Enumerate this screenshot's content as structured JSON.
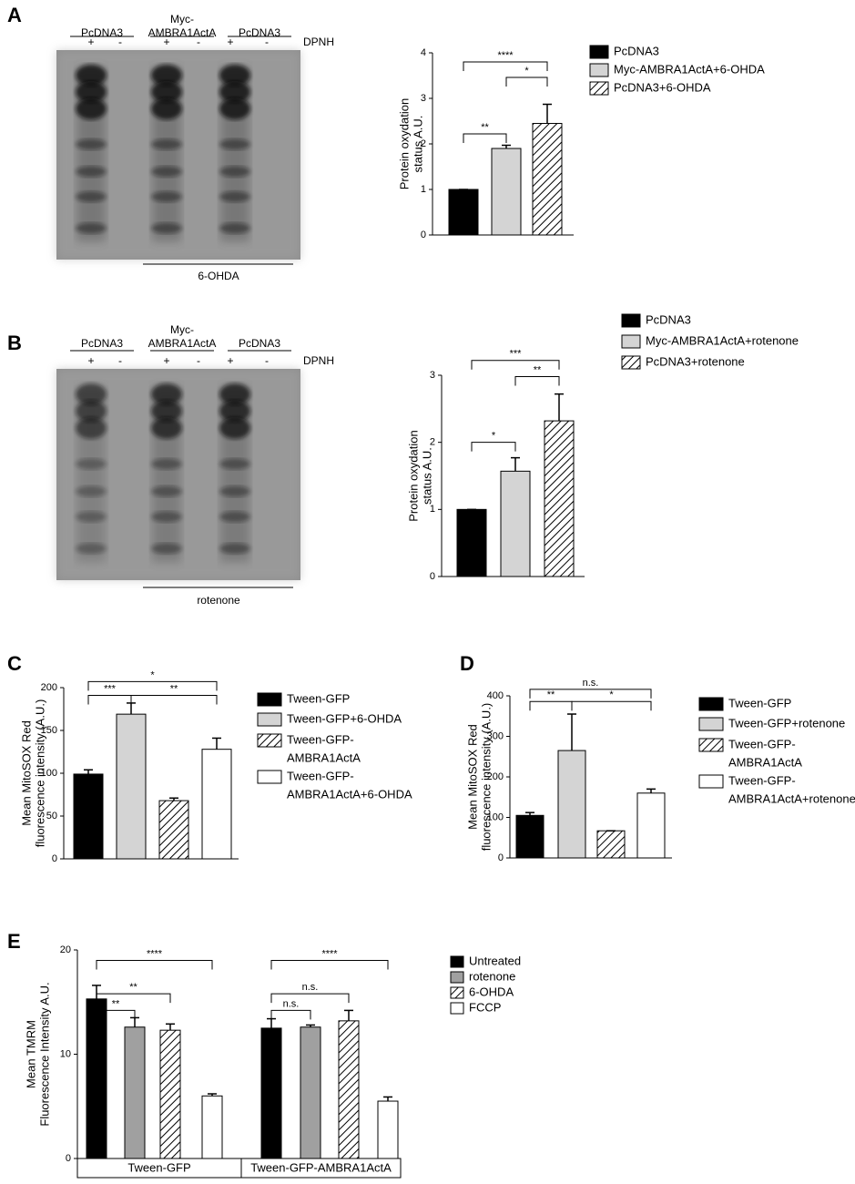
{
  "chart_data": [
    {
      "type": "bar",
      "panel": "A",
      "ylabel": [
        "Protein oxydation",
        "status A.U."
      ],
      "ylim": [
        0,
        4
      ],
      "yticks": [
        0,
        1,
        2,
        3,
        4
      ],
      "series": [
        {
          "name": "PcDNA3",
          "color": "#000000",
          "values": [
            1
          ],
          "errors": [
            0
          ]
        },
        {
          "name": "Myc-AMBRA1ActA+6-OHDA",
          "color": "#d4d4d4",
          "values": [
            1.9
          ],
          "errors": [
            0.07
          ]
        },
        {
          "name": "PcDNA3+6-OHDA",
          "color": "#ffffff",
          "hatch": true,
          "values": [
            2.45
          ],
          "errors": [
            0.42
          ]
        }
      ],
      "annotations": [
        {
          "text": "**",
          "from": 0,
          "to": 1,
          "y": 2.22
        },
        {
          "text": "*",
          "from": 1,
          "to": 2,
          "y": 3.46
        },
        {
          "text": "****",
          "from": 0,
          "to": 2,
          "y": 3.8
        }
      ]
    },
    {
      "type": "bar",
      "panel": "B",
      "ylabel": [
        "Protein oxydation",
        "status A.U."
      ],
      "ylim": [
        0,
        3
      ],
      "yticks": [
        0,
        1,
        2,
        3
      ],
      "series": [
        {
          "name": "PcDNA3",
          "color": "#000000",
          "values": [
            1
          ],
          "errors": [
            0
          ]
        },
        {
          "name": "Myc-AMBRA1ActA+rotenone",
          "color": "#d4d4d4",
          "values": [
            1.57
          ],
          "errors": [
            0.2
          ]
        },
        {
          "name": "PcDNA3+rotenone",
          "color": "#ffffff",
          "hatch": true,
          "values": [
            2.32
          ],
          "errors": [
            0.4
          ]
        }
      ],
      "annotations": [
        {
          "text": "*",
          "from": 0,
          "to": 1,
          "y": 2.0
        },
        {
          "text": "**",
          "from": 1,
          "to": 2,
          "y": 2.98
        },
        {
          "text": "***",
          "from": 0,
          "to": 2,
          "y": 3.22
        }
      ]
    },
    {
      "type": "bar",
      "panel": "C",
      "ylabel": [
        "Mean MitoSOX Red",
        "fluorescence intensity (A.U.)"
      ],
      "ylim": [
        0,
        200
      ],
      "yticks": [
        0,
        50,
        100,
        150,
        200
      ],
      "series": [
        {
          "name": "Tween-GFP",
          "color": "#000000",
          "values": [
            99
          ],
          "errors": [
            5
          ]
        },
        {
          "name": "Tween-GFP+6-OHDA",
          "color": "#d4d4d4",
          "values": [
            169
          ],
          "errors": [
            13
          ]
        },
        {
          "name": [
            "Tween-GFP-",
            "AMBRA1ActA"
          ],
          "color": "#ffffff",
          "hatch": true,
          "values": [
            68
          ],
          "errors": [
            3
          ]
        },
        {
          "name": [
            "Tween-GFP-",
            "AMBRA1ActA+6-OHDA"
          ],
          "color": "#ffffff",
          "values": [
            128
          ],
          "errors": [
            13
          ]
        }
      ],
      "annotations": [
        {
          "text": "***",
          "from": 0,
          "to": 1,
          "y": 191
        },
        {
          "text": "**",
          "from": 1,
          "to": 3,
          "y": 191
        },
        {
          "text": "*",
          "from": 0,
          "to": 3,
          "y": 207
        }
      ]
    },
    {
      "type": "bar",
      "panel": "D",
      "ylabel": [
        "Mean MitoSOX Red",
        "fluorescence intensity (A.U.)"
      ],
      "ylim": [
        0,
        400
      ],
      "yticks": [
        0,
        100,
        200,
        300,
        400
      ],
      "series": [
        {
          "name": "Tween-GFP",
          "color": "#000000",
          "values": [
            105
          ],
          "errors": [
            7
          ]
        },
        {
          "name": "Tween-GFP+rotenone",
          "color": "#d4d4d4",
          "values": [
            265
          ],
          "errors": [
            90
          ]
        },
        {
          "name": [
            "Tween-GFP-",
            "AMBRA1ActA"
          ],
          "color": "#ffffff",
          "hatch": true,
          "values": [
            67
          ],
          "errors": [
            0
          ]
        },
        {
          "name": [
            "Tween-GFP-",
            "AMBRA1ActA+rotenone"
          ],
          "color": "#ffffff",
          "values": [
            160
          ],
          "errors": [
            10
          ]
        }
      ],
      "annotations": [
        {
          "text": "**",
          "from": 0,
          "to": 1,
          "y": 386
        },
        {
          "text": "*",
          "from": 1,
          "to": 3,
          "y": 386
        },
        {
          "text": "n.s.",
          "from": 0,
          "to": 3,
          "y": 416
        }
      ]
    },
    {
      "type": "bar",
      "panel": "E",
      "ylabel": [
        "Mean TMRM",
        "Fluorescence Intensity A.U."
      ],
      "categories": [
        "Tween-GFP",
        "Tween-GFP-AMBRA1ActA"
      ],
      "ylim": [
        0,
        20
      ],
      "yticks": [
        0,
        10,
        20
      ],
      "series": [
        {
          "name": "Untreated",
          "color": "#000000",
          "values": [
            15.3,
            12.5
          ],
          "errors": [
            1.3,
            0.9
          ]
        },
        {
          "name": "rotenone",
          "color": "#a0a0a0",
          "values": [
            12.6,
            12.6
          ],
          "errors": [
            0.9,
            0.2
          ]
        },
        {
          "name": "6-OHDA",
          "color": "#ffffff",
          "hatch": true,
          "values": [
            12.3,
            13.2
          ],
          "errors": [
            0.6,
            1.0
          ]
        },
        {
          "name": "FCCP",
          "color": "#ffffff",
          "values": [
            6.0,
            5.5
          ],
          "errors": [
            0.2,
            0.4
          ]
        }
      ],
      "annotations": [
        {
          "category": 0,
          "text": "**",
          "from": 0,
          "to": 1,
          "y": 14.2
        },
        {
          "category": 0,
          "text": "**",
          "from": 0,
          "to": 2,
          "y": 15.8
        },
        {
          "category": 0,
          "text": "****",
          "from": 0,
          "to": 3,
          "y": 19.0
        },
        {
          "category": 1,
          "text": "n.s.",
          "from": 0,
          "to": 1,
          "y": 14.2
        },
        {
          "category": 1,
          "text": "n.s.",
          "from": 0,
          "to": 2,
          "y": 15.8
        },
        {
          "category": 1,
          "text": "****",
          "from": 0,
          "to": 3,
          "y": 19.0
        }
      ]
    }
  ],
  "blots": [
    {
      "lanes": [
        "PcDNA3",
        [
          "Myc-",
          "AMBRA1ActA"
        ],
        "PcDNA3"
      ],
      "signs": [
        "+",
        "-",
        "+",
        "-",
        "+",
        "-"
      ],
      "reagent": "DPNH",
      "treatment": "6-OHDA"
    },
    {
      "lanes": [
        "PcDNA3",
        [
          "Myc-",
          "AMBRA1ActA"
        ],
        "PcDNA3"
      ],
      "signs": [
        "+",
        "-",
        "+",
        "-",
        "+",
        "-"
      ],
      "reagent": "DPNH",
      "treatment": "rotenone"
    }
  ]
}
